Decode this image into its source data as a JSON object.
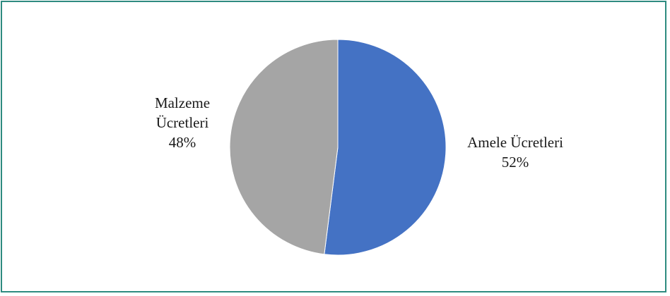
{
  "chart_data": {
    "type": "pie",
    "title": "",
    "start_angle_deg": 0,
    "direction": "clockwise",
    "slices": [
      {
        "label_lines": [
          "Amele Ücretleri"
        ],
        "percent_label": "52%",
        "value": 52,
        "color": "#4472c4"
      },
      {
        "label_lines": [
          "Malzeme",
          "Ücretleri"
        ],
        "percent_label": "48%",
        "value": 48,
        "color": "#a5a5a5"
      }
    ],
    "legend": "none"
  },
  "colors": {
    "frame_border": "#2e8b80",
    "background": "#ffffff",
    "slice_stroke": "#ffffff"
  }
}
